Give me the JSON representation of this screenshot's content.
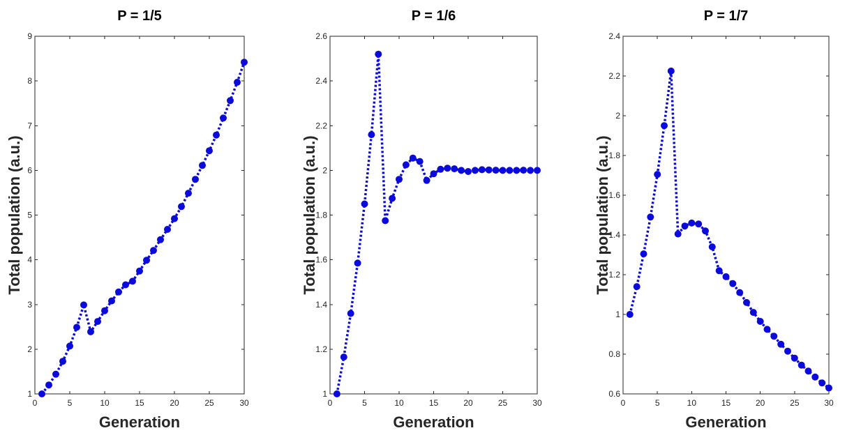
{
  "colors": {
    "series": "#0a0adc",
    "axis": "#262626",
    "background": "#ffffff"
  },
  "chart_data": [
    {
      "type": "line",
      "title": "P = 1/5",
      "xlabel": "Generation",
      "ylabel": "Total population (a.u.)",
      "xlim": [
        0,
        30
      ],
      "ylim": [
        1,
        9
      ],
      "xticks": [
        "0",
        "5",
        "10",
        "15",
        "20",
        "25",
        "30"
      ],
      "yticks": [
        "1",
        "2",
        "3",
        "4",
        "5",
        "6",
        "7",
        "8",
        "9"
      ],
      "series": [
        {
          "name": "Total population",
          "x": [
            1,
            2,
            3,
            4,
            5,
            6,
            7,
            8,
            9,
            10,
            11,
            12,
            13,
            14,
            15,
            16,
            17,
            18,
            19,
            20,
            21,
            22,
            23,
            24,
            25,
            26,
            27,
            28,
            29,
            30
          ],
          "values": [
            1.0,
            1.2,
            1.44,
            1.73,
            2.07,
            2.49,
            2.99,
            2.39,
            2.62,
            2.86,
            3.08,
            3.28,
            3.44,
            3.52,
            3.75,
            3.99,
            4.21,
            4.45,
            4.68,
            4.92,
            5.19,
            5.49,
            5.8,
            6.11,
            6.44,
            6.79,
            7.17,
            7.56,
            7.97,
            8.42
          ]
        }
      ]
    },
    {
      "type": "line",
      "title": "P = 1/6",
      "xlabel": "Generation",
      "ylabel": "Total population (a.u.)",
      "xlim": [
        0,
        30
      ],
      "ylim": [
        1,
        2.6
      ],
      "xticks": [
        "0",
        "5",
        "10",
        "15",
        "20",
        "25",
        "30"
      ],
      "yticks": [
        "1",
        "1.2",
        "1.4",
        "1.6",
        "1.8",
        "2",
        "2.2",
        "2.4",
        "2.6"
      ],
      "series": [
        {
          "name": "Total population",
          "x": [
            1,
            2,
            3,
            4,
            5,
            6,
            7,
            8,
            9,
            10,
            11,
            12,
            13,
            14,
            15,
            16,
            17,
            18,
            19,
            20,
            21,
            22,
            23,
            24,
            25,
            26,
            27,
            28,
            29,
            30
          ],
          "values": [
            1.0,
            1.165,
            1.36,
            1.585,
            1.85,
            2.16,
            2.52,
            1.775,
            1.875,
            1.96,
            2.025,
            2.055,
            2.04,
            1.955,
            1.985,
            2.005,
            2.01,
            2.007,
            2.0,
            1.995,
            2.0,
            2.003,
            2.002,
            2.001,
            2.0,
            2.0,
            2.0,
            2.001,
            2.0,
            2.0
          ]
        }
      ]
    },
    {
      "type": "line",
      "title": "P = 1/7",
      "xlabel": "Generation",
      "ylabel": "Total population (a.u.)",
      "xlim": [
        0,
        30
      ],
      "ylim": [
        0.6,
        2.4
      ],
      "xticks": [
        "0",
        "5",
        "10",
        "15",
        "20",
        "25",
        "30"
      ],
      "yticks": [
        "0.6",
        "0.8",
        "1",
        "1.2",
        "1.4",
        "1.6",
        "1.8",
        "2",
        "2.2",
        "2.4"
      ],
      "series": [
        {
          "name": "Total population",
          "x": [
            1,
            2,
            3,
            4,
            5,
            6,
            7,
            8,
            9,
            10,
            11,
            12,
            13,
            14,
            15,
            16,
            17,
            18,
            19,
            20,
            21,
            22,
            23,
            24,
            25,
            26,
            27,
            28,
            29,
            30
          ],
          "values": [
            1.0,
            1.14,
            1.305,
            1.49,
            1.705,
            1.95,
            2.225,
            1.405,
            1.445,
            1.46,
            1.455,
            1.42,
            1.34,
            1.22,
            1.19,
            1.155,
            1.11,
            1.06,
            1.01,
            0.965,
            0.925,
            0.89,
            0.85,
            0.815,
            0.78,
            0.745,
            0.715,
            0.685,
            0.655,
            0.63
          ]
        }
      ]
    }
  ]
}
